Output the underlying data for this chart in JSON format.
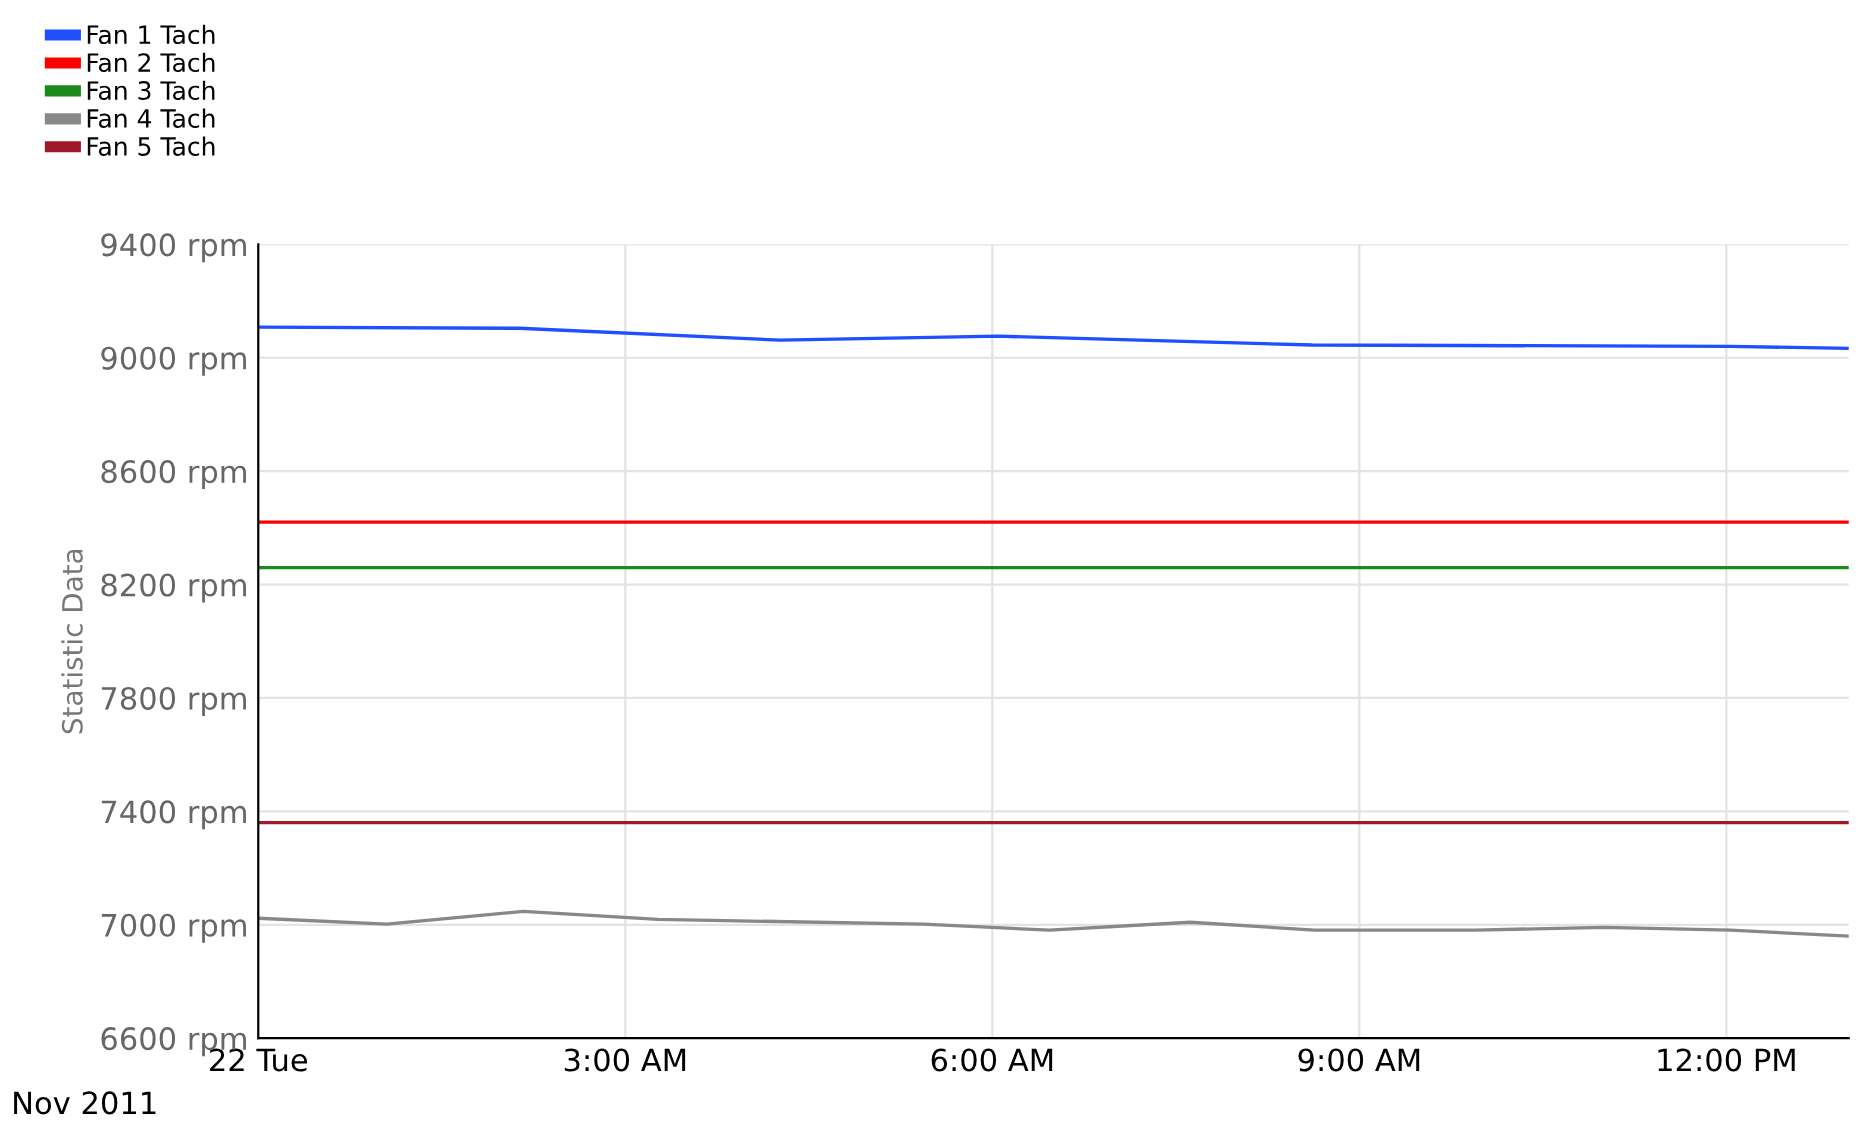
{
  "chart_data": {
    "type": "line",
    "ylabel": "Statistic Data",
    "annotations": [
      "Nov 2011"
    ],
    "xlim": [
      "2011-11-22T00:00",
      "2011-11-22T13:00"
    ],
    "xticks": [
      {
        "value": "2011-11-22T00:00",
        "label": "22 Tue"
      },
      {
        "value": "2011-11-22T03:00",
        "label": "3:00 AM"
      },
      {
        "value": "2011-11-22T06:00",
        "label": "6:00 AM"
      },
      {
        "value": "2011-11-22T09:00",
        "label": "9:00 AM"
      },
      {
        "value": "2011-11-22T12:00",
        "label": "12:00 PM"
      }
    ],
    "ylim": [
      6600,
      9400
    ],
    "yticks": [
      {
        "value": 6600,
        "label": "6600 rpm"
      },
      {
        "value": 7000,
        "label": "7000 rpm"
      },
      {
        "value": 7400,
        "label": "7400 rpm"
      },
      {
        "value": 7800,
        "label": "7800 rpm"
      },
      {
        "value": 8200,
        "label": "8200 rpm"
      },
      {
        "value": 8600,
        "label": "8600 rpm"
      },
      {
        "value": 9000,
        "label": "9000 rpm"
      },
      {
        "value": 9400,
        "label": "9400 rpm"
      }
    ],
    "grid": true,
    "legend": "top left",
    "marker": "none",
    "line_style": "solid",
    "series": [
      {
        "name": "Fan 1 Tach",
        "color": "#1f4fff",
        "x": [
          "2011-11-22T00:00",
          "2011-11-22T02:08",
          "2011-11-22T04:16",
          "2011-11-22T06:03",
          "2011-11-22T08:37",
          "2011-11-22T12:02",
          "2011-11-22T13:00"
        ],
        "values": [
          9108,
          9104,
          9062,
          9076,
          9045,
          9040,
          9033
        ]
      },
      {
        "name": "Fan 2 Tach",
        "color": "#ff0000",
        "x": [
          "2011-11-22T00:00",
          "2011-11-22T13:00"
        ],
        "values": [
          8420,
          8420
        ]
      },
      {
        "name": "Fan 3 Tach",
        "color": "#1a8a1a",
        "x": [
          "2011-11-22T00:00",
          "2011-11-22T13:00"
        ],
        "values": [
          8260,
          8260
        ]
      },
      {
        "name": "Fan 4 Tach",
        "color": "#888888",
        "x": [
          "2011-11-22T00:00",
          "2011-11-22T01:03",
          "2011-11-22T02:10",
          "2011-11-22T03:16",
          "2011-11-22T05:26",
          "2011-11-22T06:28",
          "2011-11-22T07:37",
          "2011-11-22T08:38",
          "2011-11-22T09:57",
          "2011-11-22T11:00",
          "2011-11-22T12:02",
          "2011-11-22T13:00"
        ],
        "values": [
          7023,
          7002,
          7047,
          7019,
          7002,
          6981,
          7009,
          6981,
          6981,
          6991,
          6981,
          6960
        ]
      },
      {
        "name": "Fan 5 Tach",
        "color": "#a0182a",
        "x": [
          "2011-11-22T00:00",
          "2011-11-22T13:00"
        ],
        "values": [
          7360,
          7360
        ]
      }
    ]
  }
}
